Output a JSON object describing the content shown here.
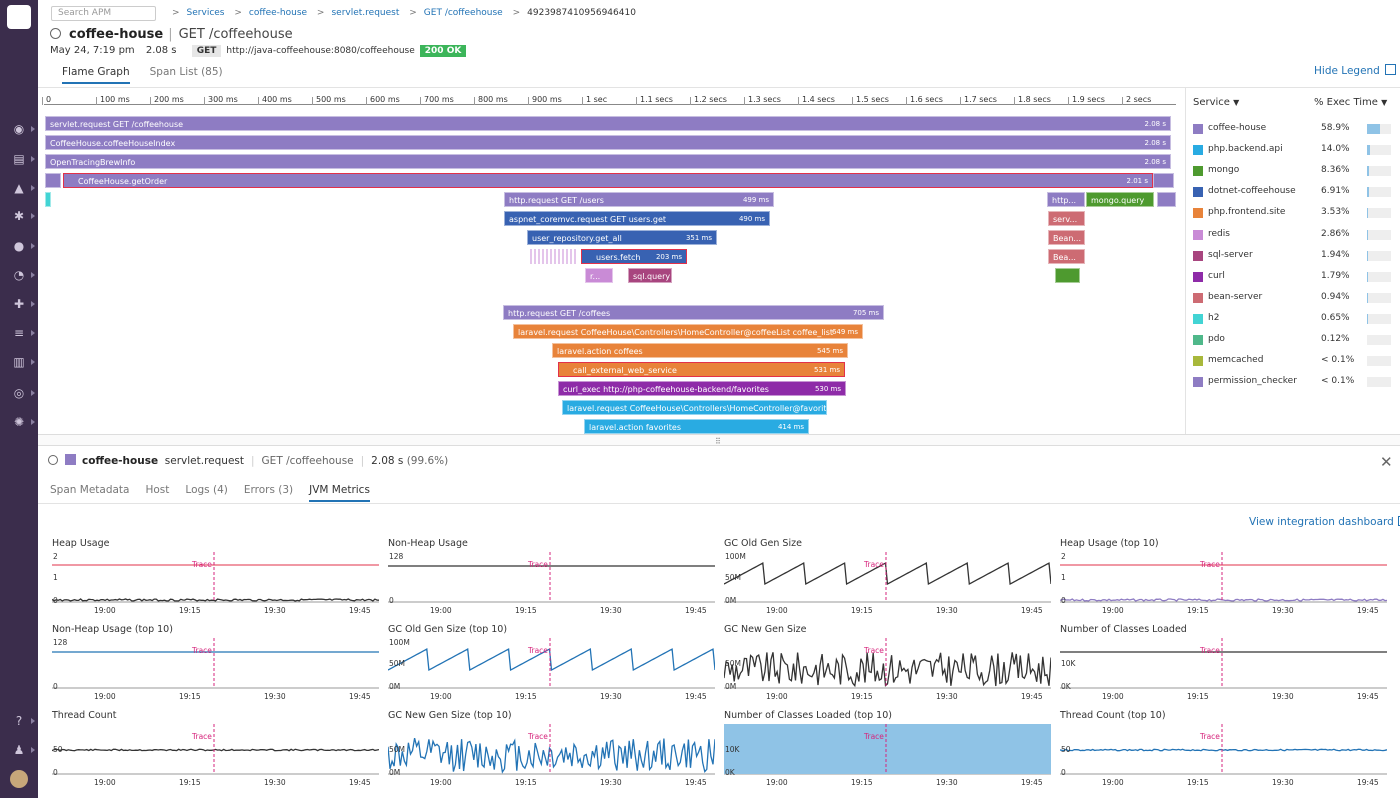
{
  "sidebar": {
    "icons": [
      "binoculars-icon",
      "dashboard-icon",
      "infrastructure-icon",
      "integrations-icon",
      "monitors-icon",
      "metrics-icon",
      "apm-icon",
      "logs-icon",
      "notebooks-icon",
      "synthetics-icon",
      "security-icon",
      "help-icon",
      "team-icon",
      "user-avatar"
    ]
  },
  "search": {
    "placeholder": "Search APM"
  },
  "breadcrumb": [
    "Services",
    "coffee-house",
    "servlet.request",
    "GET /coffeehouse",
    "4923987410956946410"
  ],
  "header": {
    "service": "coffee-house",
    "resource": "GET /coffeehouse",
    "date": "May 24, 7:19 pm",
    "duration": "2.08 s",
    "method": "GET",
    "url": "http://java-coffeehouse:8080/coffeehouse",
    "status": "200 OK"
  },
  "tabs": {
    "flame_graph": "Flame Graph",
    "span_list": "Span List (85)"
  },
  "hide_legend": "Hide Legend",
  "ticks": [
    "0",
    "100 ms",
    "200 ms",
    "300 ms",
    "400 ms",
    "500 ms",
    "600 ms",
    "700 ms",
    "800 ms",
    "900 ms",
    "1 sec",
    "1.1 secs",
    "1.2 secs",
    "1.3 secs",
    "1.4 secs",
    "1.5 secs",
    "1.6 secs",
    "1.7 secs",
    "1.8 secs",
    "1.9 secs",
    "2 secs"
  ],
  "spans": [
    {
      "label": "servlet.request GET /coffeehouse",
      "dur": "2.08 s",
      "service": "coffee-house"
    },
    {
      "label": "CoffeeHouse.coffeeHouseIndex",
      "dur": "2.08 s",
      "service": "coffee-house"
    },
    {
      "label": "OpenTracingBrewInfo",
      "dur": "2.08 s",
      "service": "coffee-house"
    },
    {
      "label": "CoffeeHouse.getOrder",
      "dur": "2.01 s",
      "service": "coffee-house",
      "error": true
    },
    {
      "label": "http.request GET /users",
      "dur": "499 ms",
      "service": "permission_checker"
    },
    {
      "label": "aspnet_coremvc.request GET users.get",
      "dur": "490 ms",
      "service": "dotnet-coffeehouse"
    },
    {
      "label": "user_repository.get_all",
      "dur": "351 ms",
      "service": "dotnet-coffeehouse"
    },
    {
      "label": "users.fetch",
      "dur": "203 ms",
      "service": "dotnet-coffeehouse",
      "error": true
    },
    {
      "label": "r...",
      "dur": "",
      "service": "redis"
    },
    {
      "label": "sql.query",
      "dur": "",
      "service": "sql-server"
    },
    {
      "label": "http...",
      "dur": "",
      "service": "permission_checker"
    },
    {
      "label": "mongo.query",
      "dur": "",
      "service": "mongo"
    },
    {
      "label": "serv...",
      "dur": "",
      "service": "bean-server"
    },
    {
      "label": "Bean...",
      "dur": "",
      "service": "bean-server"
    },
    {
      "label": "Bea...",
      "dur": "",
      "service": "bean-server"
    },
    {
      "label": "http.request GET /coffees",
      "dur": "705 ms",
      "service": "permission_checker"
    },
    {
      "label": "laravel.request CoffeeHouse\\Controllers\\HomeController@coffeeList coffee_list",
      "dur": "649 ms",
      "service": "php.frontend.site"
    },
    {
      "label": "laravel.action coffees",
      "dur": "545 ms",
      "service": "php.frontend.site"
    },
    {
      "label": "call_external_web_service",
      "dur": "531 ms",
      "service": "php.frontend.site",
      "error": true
    },
    {
      "label": "curl_exec http://php-coffeehouse-backend/favorites",
      "dur": "530 ms",
      "service": "curl"
    },
    {
      "label": "laravel.request CoffeeHouse\\Controllers\\HomeController@favorites...",
      "dur": "",
      "service": "php.backend.api"
    },
    {
      "label": "laravel.action favorites",
      "dur": "414 ms",
      "service": "php.backend.api"
    }
  ],
  "legend": {
    "col_service": "Service",
    "col_exec": "% Exec Time",
    "items": [
      {
        "name": "coffee-house",
        "pct": "58.9%",
        "frac": 0.589,
        "color": "#8e7cc3"
      },
      {
        "name": "php.backend.api",
        "pct": "14.0%",
        "frac": 0.14,
        "color": "#29abe2"
      },
      {
        "name": "mongo",
        "pct": "8.36%",
        "frac": 0.0836,
        "color": "#4e9a2f"
      },
      {
        "name": "dotnet-coffeehouse",
        "pct": "6.91%",
        "frac": 0.0691,
        "color": "#3862b2"
      },
      {
        "name": "php.frontend.site",
        "pct": "3.53%",
        "frac": 0.0353,
        "color": "#e8833a"
      },
      {
        "name": "redis",
        "pct": "2.86%",
        "frac": 0.0286,
        "color": "#c98bd6"
      },
      {
        "name": "sql-server",
        "pct": "1.94%",
        "frac": 0.0194,
        "color": "#a8457f"
      },
      {
        "name": "curl",
        "pct": "1.79%",
        "frac": 0.0179,
        "color": "#8e2ba8"
      },
      {
        "name": "bean-server",
        "pct": "0.94%",
        "frac": 0.0094,
        "color": "#cd6b73"
      },
      {
        "name": "h2",
        "pct": "0.65%",
        "frac": 0.0065,
        "color": "#42d4d4"
      },
      {
        "name": "pdo",
        "pct": "0.12%",
        "frac": 0.0012,
        "color": "#4fb88a"
      },
      {
        "name": "memcached",
        "pct": "< 0.1%",
        "frac": 0.0,
        "color": "#a8b83b"
      },
      {
        "name": "permission_checker",
        "pct": "< 0.1%",
        "frac": 0.0,
        "color": "#8e7cc3"
      }
    ]
  },
  "span_detail": {
    "service": "coffee-house",
    "operation": "servlet.request",
    "resource": "GET /coffeehouse",
    "duration": "2.08 s",
    "pct": "(99.6%)"
  },
  "detail_tabs": [
    "Span Metadata",
    "Host",
    "Logs (4)",
    "Errors (3)",
    "JVM Metrics"
  ],
  "view_dashboard": "View integration dashboard",
  "metrics": [
    {
      "title": "Heap Usage",
      "y": [
        "2",
        "1",
        "0"
      ],
      "kind": "flat-low",
      "color": "#333"
    },
    {
      "title": "Non-Heap Usage",
      "y": [
        "128",
        "",
        "0"
      ],
      "kind": "flat-high",
      "color": "#333"
    },
    {
      "title": "GC Old Gen Size",
      "y": [
        "100M",
        "50M",
        "0M"
      ],
      "kind": "saw",
      "color": "#333"
    },
    {
      "title": "Heap Usage (top 10)",
      "y": [
        "2",
        "1",
        "0"
      ],
      "kind": "flat-low",
      "color": "#8e7cc3"
    },
    {
      "title": "Non-Heap Usage (top 10)",
      "y": [
        "128",
        "",
        "0"
      ],
      "kind": "flat-high",
      "color": "#2273b5"
    },
    {
      "title": "GC Old Gen Size (top 10)",
      "y": [
        "100M",
        "50M",
        "0M"
      ],
      "kind": "saw",
      "color": "#2273b5"
    },
    {
      "title": "GC New Gen Size",
      "y": [
        "",
        "50M",
        "0M"
      ],
      "kind": "noise",
      "color": "#333"
    },
    {
      "title": "Number of Classes Loaded",
      "y": [
        "",
        "10K",
        "0K"
      ],
      "kind": "flat-high",
      "color": "#333"
    },
    {
      "title": "Thread Count",
      "y": [
        "",
        "50",
        "0"
      ],
      "kind": "flat-mid",
      "color": "#333"
    },
    {
      "title": "GC New Gen Size (top 10)",
      "y": [
        "",
        "50M",
        "0M"
      ],
      "kind": "noise",
      "color": "#2273b5"
    },
    {
      "title": "Number of Classes Loaded (top 10)",
      "y": [
        "",
        "10K",
        "0K"
      ],
      "kind": "area",
      "color": "#8fc3e6"
    },
    {
      "title": "Thread Count (top 10)",
      "y": [
        "",
        "50",
        "0"
      ],
      "kind": "flat-mid",
      "color": "#2273b5"
    }
  ],
  "metric_x": [
    "19:00",
    "19:15",
    "19:30",
    "19:45"
  ],
  "trace_label": "Trace"
}
